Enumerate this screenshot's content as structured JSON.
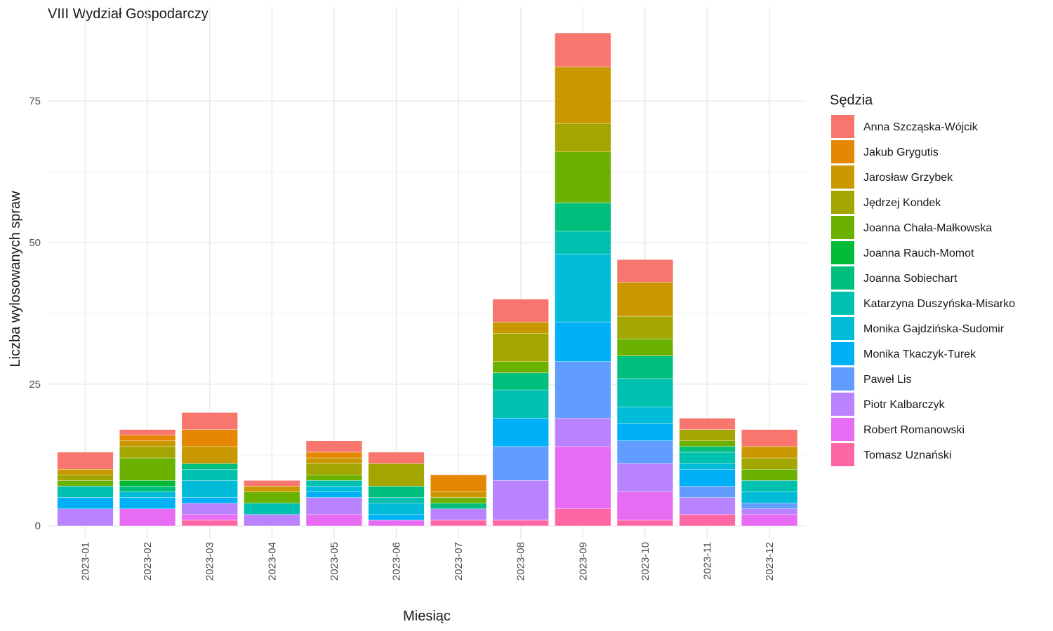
{
  "chart_data": {
    "type": "bar",
    "stacked": true,
    "title": "VIII Wydział Gospodarczy",
    "xlabel": "Miesiąc",
    "ylabel": "Liczba wylosowanych spraw",
    "ylim": [
      0,
      90
    ],
    "yticks": [
      0,
      25,
      50,
      75
    ],
    "grid": true,
    "legend": {
      "title": "Sędzia",
      "position": "right"
    },
    "categories": [
      "2023-01",
      "2023-02",
      "2023-03",
      "2023-04",
      "2023-05",
      "2023-06",
      "2023-07",
      "2023-08",
      "2023-09",
      "2023-10",
      "2023-11",
      "2023-12"
    ],
    "series": [
      {
        "name": "Anna Szcząska-Wójcik",
        "color": "#F8766D",
        "values": [
          3,
          1,
          3,
          1,
          2,
          2,
          0,
          4,
          6,
          4,
          2,
          3
        ]
      },
      {
        "name": "Jakub Grygutis",
        "color": "#E58700",
        "values": [
          0,
          1,
          3,
          0,
          1,
          0,
          3,
          0,
          0,
          0,
          0,
          0
        ]
      },
      {
        "name": "Jarosław Grzybek",
        "color": "#C99800",
        "values": [
          1,
          1,
          3,
          1,
          1,
          0,
          1,
          2,
          10,
          6,
          0,
          2
        ]
      },
      {
        "name": "Jędrzej Kondek",
        "color": "#A3A500",
        "values": [
          1,
          2,
          0,
          0,
          2,
          4,
          0,
          5,
          5,
          4,
          2,
          2
        ]
      },
      {
        "name": "Joanna Chała-Małkowska",
        "color": "#6BB100",
        "values": [
          1,
          4,
          0,
          2,
          1,
          0,
          1,
          2,
          9,
          3,
          1,
          2
        ]
      },
      {
        "name": "Joanna Rauch-Momot",
        "color": "#00BA38",
        "values": [
          0,
          1,
          0,
          0,
          0,
          0,
          0,
          0,
          0,
          0,
          0,
          0
        ]
      },
      {
        "name": "Joanna Sobiechart",
        "color": "#00BF7D",
        "values": [
          0,
          1,
          1,
          0,
          0,
          2,
          1,
          3,
          5,
          4,
          1,
          0
        ]
      },
      {
        "name": "Katarzyna Duszyńska-Misarko",
        "color": "#00C0AF",
        "values": [
          2,
          0,
          2,
          2,
          1,
          1,
          0,
          5,
          4,
          5,
          2,
          2
        ]
      },
      {
        "name": "Monika Gajdzińska-Sudomir",
        "color": "#00BCD8",
        "values": [
          0,
          1,
          3,
          0,
          1,
          2,
          0,
          0,
          12,
          3,
          1,
          2
        ]
      },
      {
        "name": "Monika Tkaczyk-Turek",
        "color": "#00B0F6",
        "values": [
          2,
          2,
          1,
          0,
          1,
          1,
          0,
          5,
          7,
          3,
          3,
          0
        ]
      },
      {
        "name": "Paweł Lis",
        "color": "#619CFF",
        "values": [
          0,
          0,
          0,
          0,
          0,
          0,
          0,
          6,
          10,
          4,
          2,
          1
        ]
      },
      {
        "name": "Piotr Kalbarczyk",
        "color": "#B983FF",
        "values": [
          3,
          0,
          2,
          2,
          3,
          0,
          2,
          7,
          5,
          5,
          3,
          1
        ]
      },
      {
        "name": "Robert Romanowski",
        "color": "#E76BF3",
        "values": [
          0,
          3,
          1,
          0,
          2,
          1,
          0,
          0,
          11,
          5,
          0,
          2
        ]
      },
      {
        "name": "Tomasz Uznański",
        "color": "#FF67A4",
        "values": [
          0,
          0,
          1,
          0,
          0,
          0,
          1,
          1,
          3,
          1,
          2,
          0
        ]
      }
    ],
    "draw_order_from_bottom": [
      "Tomasz Uznański",
      "Robert Romanowski",
      "Piotr Kalbarczyk",
      "Paweł Lis",
      "Monika Tkaczyk-Turek",
      "Monika Gajdzińska-Sudomir",
      "Katarzyna Duszyńska-Misarko",
      "Joanna Sobiechart",
      "Joanna Rauch-Momot",
      "Joanna Chała-Małkowska",
      "Jędrzej Kondek",
      "Jarosław Grzybek",
      "Jakub Grygutis",
      "Anna Szcząska-Wójcik"
    ]
  }
}
